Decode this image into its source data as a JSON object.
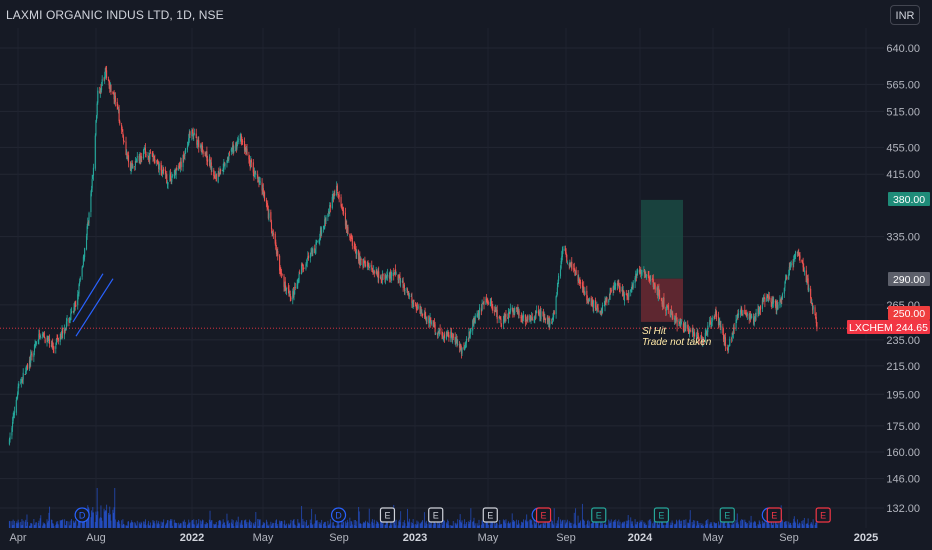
{
  "header": {
    "title": "LAXMI ORGANIC INDUS LTD, 1D, NSE",
    "currency_button": "INR"
  },
  "annotation": {
    "line1": "Sl Hit",
    "line2": "Trade not taken"
  },
  "markers": {
    "target_price": "380.00",
    "entry_price": "290.00",
    "stop_price": "250.00",
    "last_symbol": "LXCHEM",
    "last_price": "244.65"
  },
  "colors": {
    "background": "#161a25",
    "up": "#26a69a",
    "down": "#ef5350",
    "target_zone": "#1a4a43",
    "stop_zone": "#6b2a33",
    "trendline": "#2962ff",
    "volume": "#2962ff"
  },
  "chart_data": {
    "type": "candlestick",
    "title": "LAXMI ORGANIC INDUS LTD, 1D, NSE",
    "y_scale": "log",
    "ylim": [
      126,
      720
    ],
    "y_ticks": [
      640,
      565,
      515,
      455,
      415,
      335,
      265,
      235,
      215,
      195,
      175,
      160,
      146,
      132
    ],
    "x_labels": [
      "Apr",
      "Aug",
      "2022",
      "May",
      "Sep",
      "2023",
      "May",
      "Sep",
      "2024",
      "May",
      "Sep",
      "2025"
    ],
    "grid": true,
    "close_series": {
      "x": [
        "2021-04-01",
        "2021-04-15",
        "2021-05-01",
        "2021-05-20",
        "2021-06-10",
        "2021-07-01",
        "2021-07-15",
        "2021-07-25",
        "2021-08-05",
        "2021-08-12",
        "2021-08-20",
        "2021-09-01",
        "2021-09-20",
        "2021-10-10",
        "2021-11-01",
        "2021-11-20",
        "2021-12-10",
        "2022-01-01",
        "2022-01-15",
        "2022-02-05",
        "2022-02-25",
        "2022-03-15",
        "2022-04-05",
        "2022-04-25",
        "2022-05-10",
        "2022-05-25",
        "2022-06-10",
        "2022-06-25",
        "2022-07-10",
        "2022-08-01",
        "2022-08-20",
        "2022-09-05",
        "2022-09-20",
        "2022-10-10",
        "2022-11-01",
        "2022-11-20",
        "2022-12-10",
        "2023-01-01",
        "2023-01-25",
        "2023-02-15",
        "2023-03-10",
        "2023-03-25",
        "2023-04-15",
        "2023-05-05",
        "2023-05-25",
        "2023-06-15",
        "2023-07-05",
        "2023-07-25",
        "2023-08-15",
        "2023-09-01",
        "2023-09-20",
        "2023-10-10",
        "2023-11-01",
        "2023-11-25",
        "2023-12-10",
        "2024-01-01",
        "2024-01-20",
        "2024-02-10",
        "2024-03-01",
        "2024-03-20",
        "2024-04-10",
        "2024-05-01",
        "2024-05-20",
        "2024-06-10",
        "2024-07-01",
        "2024-07-20",
        "2024-08-10",
        "2024-08-25",
        "2024-09-10",
        "2024-09-25",
        "2024-10-10"
      ],
      "close": [
        165,
        200,
        215,
        240,
        230,
        248,
        262,
        295,
        355,
        410,
        545,
        590,
        520,
        420,
        450,
        435,
        405,
        430,
        480,
        450,
        410,
        440,
        470,
        420,
        395,
        340,
        290,
        270,
        300,
        320,
        360,
        395,
        345,
        310,
        300,
        290,
        295,
        270,
        255,
        240,
        238,
        225,
        255,
        270,
        250,
        262,
        252,
        258,
        248,
        320,
        295,
        270,
        260,
        285,
        270,
        300,
        288,
        265,
        250,
        243,
        235,
        258,
        228,
        262,
        250,
        272,
        262,
        295,
        320,
        285,
        244.65
      ]
    },
    "trade": {
      "target": 380.0,
      "entry": 290.0,
      "stop": 250.0,
      "result": "Sl Hit",
      "note": "Trade not taken"
    },
    "last_price": 244.65,
    "events": [
      {
        "date": "2021-07-26",
        "label": "D"
      },
      {
        "date": "2022-09-08",
        "label": "D"
      },
      {
        "date": "2022-11-25",
        "label": "E"
      },
      {
        "date": "2023-02-10",
        "label": "E"
      },
      {
        "date": "2023-05-08",
        "label": "E"
      },
      {
        "date": "2023-07-25",
        "label": "D"
      },
      {
        "date": "2023-08-01",
        "label": "E"
      },
      {
        "date": "2023-10-28",
        "label": "E"
      },
      {
        "date": "2024-02-05",
        "label": "E"
      },
      {
        "date": "2024-05-20",
        "label": "E"
      },
      {
        "date": "2024-07-26",
        "label": "D"
      },
      {
        "date": "2024-08-03",
        "label": "E"
      },
      {
        "date": "2024-10-20",
        "label": "E"
      }
    ]
  }
}
